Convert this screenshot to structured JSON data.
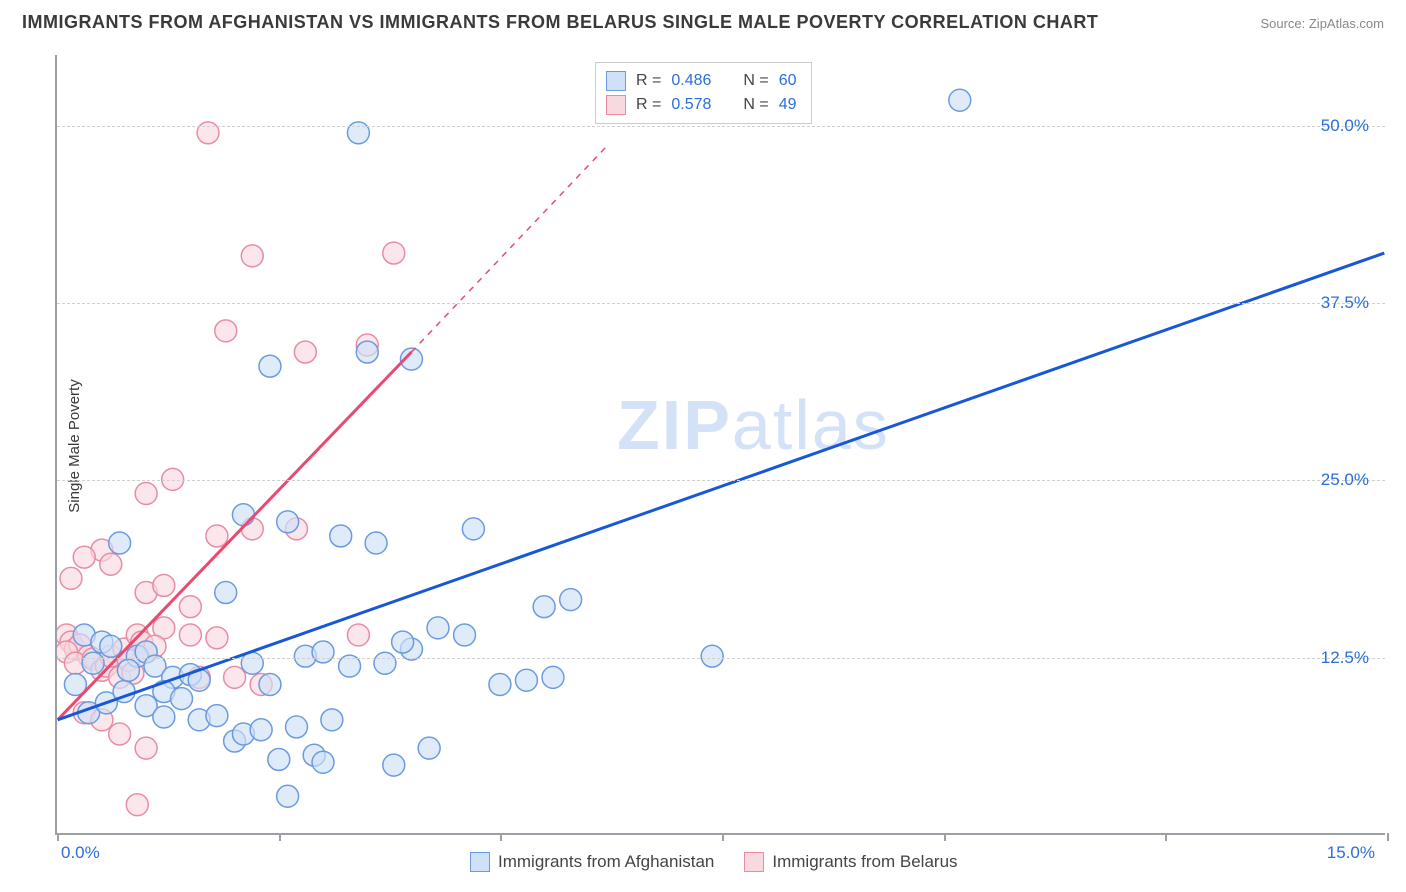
{
  "title": "IMMIGRANTS FROM AFGHANISTAN VS IMMIGRANTS FROM BELARUS SINGLE MALE POVERTY CORRELATION CHART",
  "source_prefix": "Source: ",
  "source": "ZipAtlas.com",
  "ylabel": "Single Male Poverty",
  "watermark": {
    "bold": "ZIP",
    "thin": "atlas"
  },
  "chart": {
    "type": "scatter",
    "xlim": [
      0,
      15
    ],
    "ylim": [
      0,
      55
    ],
    "xticks": [
      0,
      2.5,
      5,
      7.5,
      10,
      12.5,
      15
    ],
    "xtick_labels_shown": {
      "0": "0.0%",
      "15": "15.0%"
    },
    "yticks": [
      12.5,
      25,
      37.5,
      50
    ],
    "ytick_labels": [
      "12.5%",
      "25.0%",
      "37.5%",
      "50.0%"
    ],
    "grid_color": "#d0d0d0",
    "axis_color": "#9aa0a6",
    "background_color": "#ffffff"
  },
  "series": {
    "afghanistan": {
      "label": "Immigrants from Afghanistan",
      "marker_fill": "#cfe0f7",
      "marker_stroke": "#6a9be0",
      "marker_radius": 11,
      "line_color": "#1857d6",
      "line_width": 3,
      "R": "0.486",
      "N": "60",
      "regression": {
        "x1": 0,
        "y1": 8.0,
        "x2": 15,
        "y2": 41.0
      },
      "points": [
        [
          10.2,
          51.8
        ],
        [
          3.4,
          49.5
        ],
        [
          4.0,
          33.5
        ],
        [
          2.4,
          33.0
        ],
        [
          3.5,
          34.0
        ],
        [
          2.6,
          22.0
        ],
        [
          3.2,
          21.0
        ],
        [
          3.6,
          20.5
        ],
        [
          2.1,
          22.5
        ],
        [
          4.7,
          21.5
        ],
        [
          5.5,
          16.0
        ],
        [
          5.8,
          16.5
        ],
        [
          4.3,
          14.5
        ],
        [
          4.6,
          14.0
        ],
        [
          4.0,
          13.0
        ],
        [
          1.9,
          17.0
        ],
        [
          0.7,
          20.5
        ],
        [
          0.3,
          14.0
        ],
        [
          0.5,
          13.5
        ],
        [
          0.6,
          13.2
        ],
        [
          0.9,
          12.5
        ],
        [
          1.0,
          12.8
        ],
        [
          0.4,
          12.0
        ],
        [
          0.8,
          11.5
        ],
        [
          0.2,
          10.5
        ],
        [
          1.1,
          11.8
        ],
        [
          1.3,
          11.0
        ],
        [
          1.5,
          11.2
        ],
        [
          1.6,
          10.8
        ],
        [
          2.2,
          12.0
        ],
        [
          2.4,
          10.5
        ],
        [
          2.8,
          12.5
        ],
        [
          3.0,
          12.8
        ],
        [
          3.3,
          11.8
        ],
        [
          3.7,
          12.0
        ],
        [
          7.4,
          12.5
        ],
        [
          1.2,
          10.0
        ],
        [
          1.4,
          9.5
        ],
        [
          1.6,
          8.0
        ],
        [
          1.8,
          8.3
        ],
        [
          2.0,
          6.5
        ],
        [
          2.1,
          7.0
        ],
        [
          2.3,
          7.3
        ],
        [
          2.5,
          5.2
        ],
        [
          2.7,
          7.5
        ],
        [
          2.9,
          5.5
        ],
        [
          3.1,
          8.0
        ],
        [
          3.0,
          5.0
        ],
        [
          2.6,
          2.6
        ],
        [
          3.9,
          13.5
        ],
        [
          4.2,
          6.0
        ],
        [
          3.8,
          4.8
        ],
        [
          5.0,
          10.5
        ],
        [
          5.3,
          10.8
        ],
        [
          5.6,
          11.0
        ],
        [
          0.35,
          8.5
        ],
        [
          0.55,
          9.2
        ],
        [
          0.75,
          10.0
        ],
        [
          1.0,
          9.0
        ],
        [
          1.2,
          8.2
        ]
      ]
    },
    "belarus": {
      "label": "Immigrants from Belarus",
      "marker_fill": "#f9d9e0",
      "marker_stroke": "#e88ca3",
      "marker_radius": 11,
      "line_color": "#e84a72",
      "line_width": 3,
      "R": "0.578",
      "N": "49",
      "regression_solid": {
        "x1": 0,
        "y1": 8.0,
        "x2": 4.0,
        "y2": 34.0
      },
      "regression_dashed": {
        "x1": 4.0,
        "y1": 34.0,
        "x2": 6.2,
        "y2": 48.5
      },
      "points": [
        [
          1.7,
          49.5
        ],
        [
          3.8,
          41.0
        ],
        [
          2.2,
          40.8
        ],
        [
          1.9,
          35.5
        ],
        [
          3.5,
          34.5
        ],
        [
          2.8,
          34.0
        ],
        [
          1.3,
          25.0
        ],
        [
          1.0,
          24.0
        ],
        [
          0.5,
          20.0
        ],
        [
          0.3,
          19.5
        ],
        [
          0.6,
          19.0
        ],
        [
          0.15,
          18.0
        ],
        [
          1.8,
          21.0
        ],
        [
          2.2,
          21.5
        ],
        [
          2.7,
          21.5
        ],
        [
          1.0,
          17.0
        ],
        [
          1.2,
          17.5
        ],
        [
          1.5,
          16.0
        ],
        [
          1.2,
          14.5
        ],
        [
          1.5,
          14.0
        ],
        [
          1.8,
          13.8
        ],
        [
          2.0,
          11.0
        ],
        [
          2.3,
          10.5
        ],
        [
          3.4,
          14.0
        ],
        [
          0.1,
          14.0
        ],
        [
          0.15,
          13.5
        ],
        [
          0.2,
          13.0
        ],
        [
          0.25,
          13.3
        ],
        [
          0.1,
          12.8
        ],
        [
          0.35,
          12.5
        ],
        [
          0.2,
          12.0
        ],
        [
          0.4,
          12.3
        ],
        [
          0.5,
          11.5
        ],
        [
          0.55,
          11.8
        ],
        [
          0.6,
          12.5
        ],
        [
          0.7,
          11.0
        ],
        [
          0.75,
          13.0
        ],
        [
          0.8,
          12.2
        ],
        [
          0.85,
          11.3
        ],
        [
          0.9,
          14.0
        ],
        [
          0.95,
          13.5
        ],
        [
          1.0,
          12.8
        ],
        [
          1.1,
          13.2
        ],
        [
          0.3,
          8.5
        ],
        [
          0.5,
          8.0
        ],
        [
          0.7,
          7.0
        ],
        [
          1.0,
          6.0
        ],
        [
          0.9,
          2.0
        ],
        [
          1.6,
          11.0
        ]
      ]
    }
  },
  "legend_top": {
    "r_prefix": "R = ",
    "n_prefix": "N = "
  }
}
